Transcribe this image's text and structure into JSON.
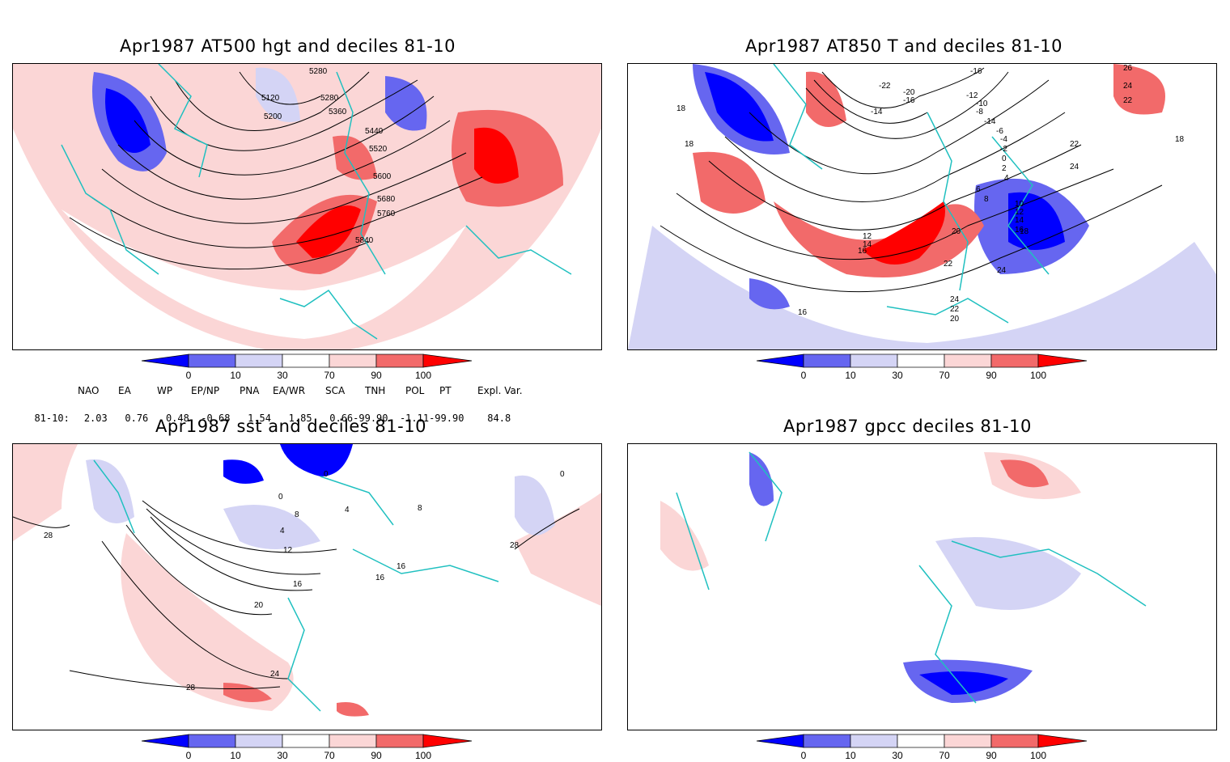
{
  "colors": {
    "d0": "#0000ff",
    "d10": "#6666f0",
    "d30": "#d4d4f5",
    "d70": "#fbd6d6",
    "d90": "#f26a6a",
    "d100": "#ff0000",
    "coast": "#20c0c0",
    "contour": "#000000"
  },
  "panels": [
    {
      "title": "Apr1987 AT500 hgt and deciles 81-10",
      "contour_labels": [
        "5280",
        "5120",
        "5200",
        "5280",
        "5360",
        "5440",
        "5520",
        "5600",
        "5680",
        "5760",
        "5840"
      ]
    },
    {
      "title": "Apr1987 AT850 T and deciles 81-10",
      "contour_labels": [
        "-16",
        "-22",
        "-20",
        "-16",
        "-14",
        "-12",
        "-10",
        "-8",
        "-14",
        "-6",
        "-4",
        "-2",
        "0",
        "2",
        "4",
        "6",
        "8",
        "10",
        "12",
        "14",
        "16",
        "18",
        "18",
        "18",
        "12",
        "14",
        "16",
        "20",
        "22",
        "24",
        "24",
        "22",
        "20",
        "16",
        "26",
        "24",
        "22",
        "22",
        "24",
        "18"
      ]
    },
    {
      "title": "Apr1987 sst and deciles 81-10",
      "contour_labels": [
        "0",
        "0",
        "4",
        "8",
        "12",
        "16",
        "20",
        "24",
        "28",
        "28",
        "8",
        "4",
        "16",
        "16",
        "28",
        "0"
      ]
    },
    {
      "title": "Apr1987 gpcc deciles 81-10",
      "contour_labels": []
    }
  ],
  "colorbar": {
    "ticks": [
      "0",
      "10",
      "30",
      "70",
      "90",
      "100"
    ]
  },
  "indices": {
    "names": [
      "NAO",
      "EA",
      "WP",
      "EP/NP",
      "PNA",
      "EA/WR",
      "SCA",
      "TNH",
      "POL",
      "PT",
      "Expl. Var."
    ],
    "row_label": "81-10:",
    "values": "2.03   0.76   0.48  -0.68   1.54   1.85   0.66-99.90  -1.11-99.90    84.8"
  }
}
